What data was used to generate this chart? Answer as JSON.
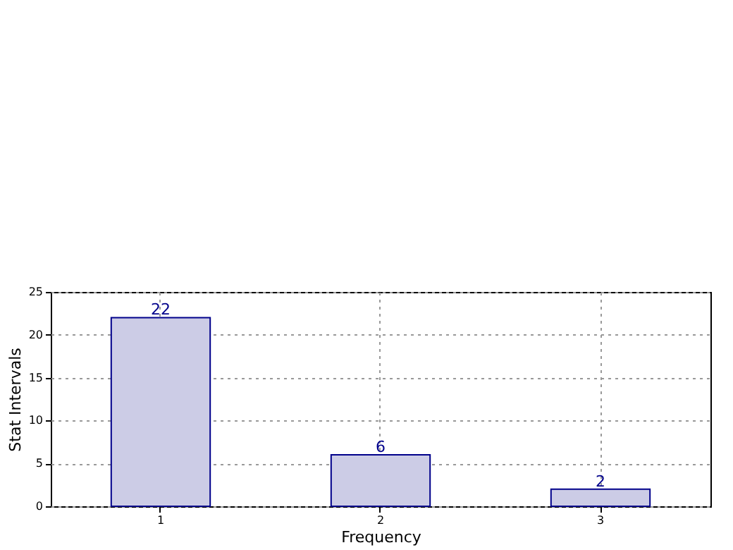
{
  "chart_data": {
    "type": "bar",
    "xlabel": "Frequency",
    "ylabel": "Stat Intervals",
    "categories": [
      "1",
      "2",
      "3"
    ],
    "values": [
      22,
      6,
      2
    ],
    "color": "#ccccE6",
    "ylim": [
      0,
      25
    ],
    "yticks": [
      0,
      5,
      10,
      15,
      20,
      25
    ],
    "grid": true,
    "data_labels": true
  }
}
